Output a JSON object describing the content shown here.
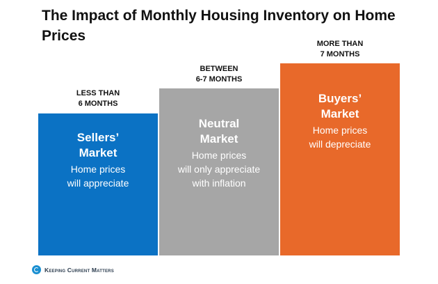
{
  "title": "The Impact of Monthly Housing Inventory on Home Prices",
  "markets": [
    {
      "range_line1": "LESS THAN",
      "range_line2": "6 MONTHS",
      "name_line1": "Sellers’",
      "name_line2": "Market",
      "desc_line1": "Home prices",
      "desc_line2": "will appreciate",
      "desc_line3": "",
      "color": "#0b72c4"
    },
    {
      "range_line1": "BETWEEN",
      "range_line2": "6-7 MONTHS",
      "name_line1": "Neutral",
      "name_line2": "Market",
      "desc_line1": "Home prices",
      "desc_line2": "will only appreciate",
      "desc_line3": "with inflation",
      "color": "#a6a6a6"
    },
    {
      "range_line1": "MORE THAN",
      "range_line2": "7 MONTHS",
      "name_line1": "Buyers’",
      "name_line2": "Market",
      "desc_line1": "Home prices",
      "desc_line2": "will depreciate",
      "desc_line3": "",
      "color": "#e8692a"
    }
  ],
  "footer": {
    "logo_icon": "kcm-logo-icon",
    "brand": "Keeping Current Matters",
    "brand_color": "#1a8fd1"
  }
}
